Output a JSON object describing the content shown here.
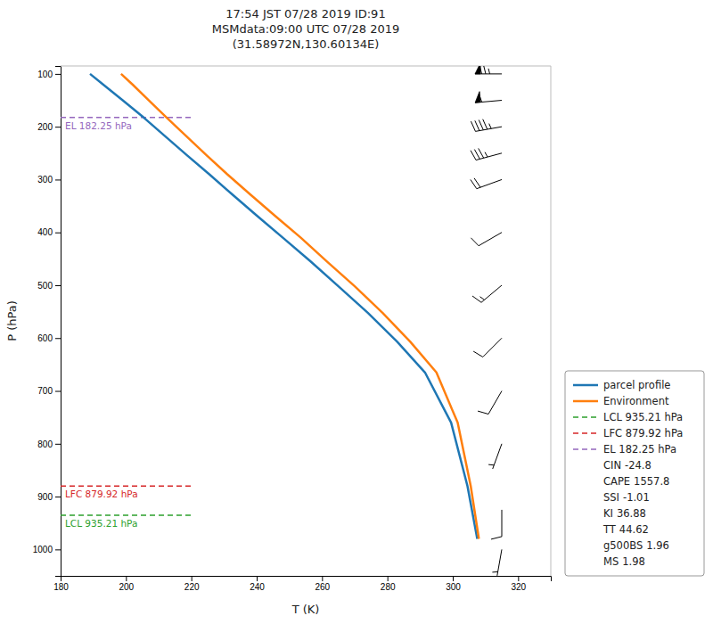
{
  "chart_data": {
    "type": "line",
    "title": [
      "17:54 JST 07/28 2019  ID:91",
      "MSMdata:09:00 UTC 07/28 2019",
      "(31.58972N,130.60134E)"
    ],
    "xlabel": "T (K)",
    "ylabel": "P (hPa)",
    "xlim": [
      180,
      330
    ],
    "ylim": [
      1050,
      85
    ],
    "xticks": [
      180,
      200,
      220,
      240,
      260,
      280,
      300,
      320
    ],
    "yticks": [
      100,
      200,
      300,
      400,
      500,
      600,
      700,
      800,
      900,
      1000
    ],
    "grid": false,
    "legend": "lower right",
    "series": [
      {
        "name": "parcel profile",
        "color": "#1f77b4",
        "x": [
          189.0,
          193.0,
          199.0,
          205.5,
          212.0,
          218.5,
          225.5,
          232.5,
          240.0,
          248.0,
          256.5,
          265.0,
          274.0,
          283.0,
          291.5,
          299.5,
          304.5,
          307.5
        ],
        "values": [
          100,
          120,
          150,
          183,
          218,
          253,
          290,
          328,
          368,
          410,
          455,
          502,
          552,
          607,
          665,
          760,
          880,
          980
        ]
      },
      {
        "name": "Environment",
        "color": "#ff7f0e",
        "x": [
          198.5,
          202.0,
          207.0,
          212.5,
          218.5,
          224.5,
          231.0,
          238.0,
          245.5,
          253.5,
          261.5,
          270.0,
          278.5,
          287.0,
          295.0,
          301.5,
          305.5,
          308.0
        ],
        "values": [
          100,
          120,
          150,
          183,
          218,
          253,
          290,
          328,
          368,
          410,
          455,
          502,
          552,
          607,
          665,
          760,
          880,
          980
        ]
      }
    ],
    "levels": [
      {
        "label": "LCL 935.21 hPa",
        "value": 935.21,
        "color": "#2ca02c",
        "line_style": "dashed",
        "x_extent": [
          180,
          220
        ]
      },
      {
        "label": "LFC 879.92 hPa",
        "value": 879.92,
        "color": "#d62728",
        "line_style": "dashed",
        "x_extent": [
          180,
          220
        ]
      },
      {
        "label": "EL 182.25 hPa",
        "value": 182.25,
        "color": "#9467bd",
        "line_style": "dashed",
        "x_extent": [
          180,
          220
        ]
      }
    ],
    "stats": [
      {
        "name": "CIN",
        "value": -24.8
      },
      {
        "name": "CAPE",
        "value": 1557.8
      },
      {
        "name": "SSI",
        "value": -1.01
      },
      {
        "name": "KI",
        "value": 36.88
      },
      {
        "name": "TT",
        "value": 44.62
      },
      {
        "name": "g500BS",
        "value": 1.96
      },
      {
        "name": "MS",
        "value": 1.98
      }
    ],
    "wind": {
      "x": 315,
      "pressure": [
        100,
        150,
        200,
        250,
        300,
        400,
        500,
        600,
        700,
        800,
        925,
        1000
      ],
      "speed_kts": [
        75,
        55,
        45,
        35,
        20,
        10,
        15,
        10,
        8,
        5,
        12,
        5
      ],
      "direction": [
        270,
        265,
        260,
        255,
        250,
        240,
        230,
        225,
        210,
        200,
        180,
        190
      ]
    }
  }
}
